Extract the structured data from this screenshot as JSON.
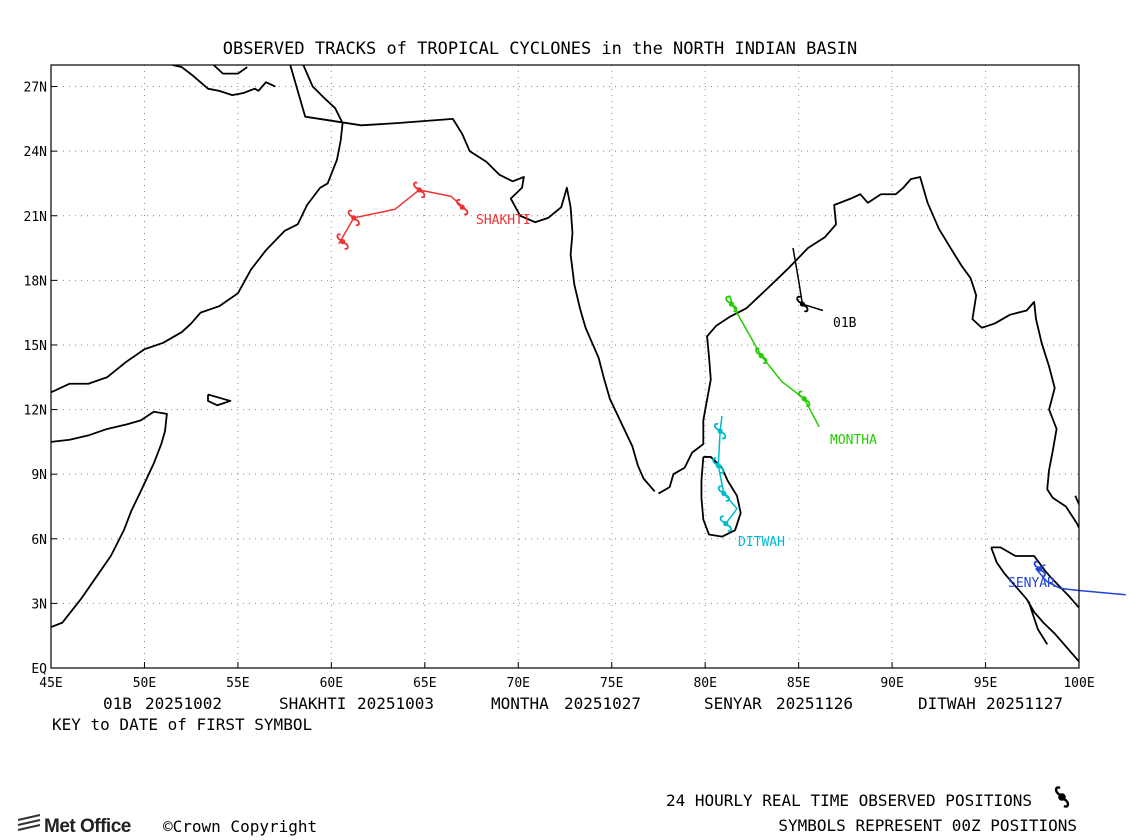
{
  "title": "OBSERVED TRACKS of TROPICAL CYCLONES in the NORTH INDIAN BASIN",
  "map": {
    "lon_range": [
      45,
      100
    ],
    "lat_range": [
      0,
      28
    ],
    "x_ticks": [
      "45E",
      "50E",
      "55E",
      "60E",
      "65E",
      "70E",
      "75E",
      "80E",
      "85E",
      "90E",
      "95E",
      "100E"
    ],
    "y_ticks": [
      "EQ",
      "3N",
      "6N",
      "9N",
      "12N",
      "15N",
      "18N",
      "21N",
      "24N",
      "27N"
    ],
    "gridlines": true
  },
  "tracks": [
    {
      "name": "SHAKHTI",
      "first_date": "20251003",
      "color": "#ee3333",
      "path": [
        [
          60.4,
          19.7
        ],
        [
          61.2,
          20.9
        ],
        [
          63.4,
          21.3
        ],
        [
          64.7,
          22.2
        ],
        [
          66.4,
          21.9
        ],
        [
          67.3,
          21.2
        ]
      ],
      "symbols": [
        [
          60.6,
          19.8
        ],
        [
          61.2,
          20.9
        ],
        [
          64.7,
          22.2
        ],
        [
          67.0,
          21.4
        ]
      ]
    },
    {
      "name": "01B",
      "first_date": "20251002",
      "color": "#000000",
      "path": [
        [
          84.7,
          19.5
        ],
        [
          85.0,
          18.0
        ],
        [
          85.2,
          16.9
        ],
        [
          86.3,
          16.6
        ]
      ],
      "symbols": [
        [
          85.2,
          16.9
        ]
      ]
    },
    {
      "name": "MONTHA",
      "first_date": "20251027",
      "color": "#22cc00",
      "path": [
        [
          81.3,
          17.3
        ],
        [
          81.5,
          16.8
        ],
        [
          83.0,
          14.5
        ],
        [
          84.1,
          13.3
        ],
        [
          85.3,
          12.5
        ],
        [
          86.1,
          11.2
        ]
      ],
      "symbols": [
        [
          81.4,
          16.9
        ],
        [
          83.0,
          14.5
        ],
        [
          85.3,
          12.5
        ]
      ]
    },
    {
      "name": "DITWAH",
      "first_date": "20251127",
      "color": "#00bbcc",
      "path": [
        [
          80.9,
          11.7
        ],
        [
          80.8,
          11.0
        ],
        [
          80.7,
          9.4
        ],
        [
          81.0,
          8.1
        ],
        [
          81.7,
          7.4
        ],
        [
          81.1,
          6.7
        ]
      ],
      "symbols": [
        [
          80.8,
          11.0
        ],
        [
          80.7,
          9.4
        ],
        [
          81.0,
          8.1
        ],
        [
          81.1,
          6.7
        ]
      ]
    },
    {
      "name": "SENYAR",
      "first_date": "20251126",
      "color": "#2244dd",
      "path": [
        [
          98.2,
          4.8
        ],
        [
          97.7,
          4.6
        ],
        [
          98.3,
          4.0
        ],
        [
          99.0,
          3.7
        ],
        [
          100.0,
          3.6
        ],
        [
          102.5,
          3.4
        ]
      ],
      "symbols": [
        [
          97.9,
          4.6
        ]
      ]
    }
  ],
  "key_entries": [
    {
      "name": "01B",
      "date": "20251002"
    },
    {
      "name": "SHAKHTI",
      "date": "20251003"
    },
    {
      "name": "MONTHA",
      "date": "20251027"
    },
    {
      "name": "SENYAR",
      "date": "20251126"
    },
    {
      "name": "DITWAH",
      "date": "20251127"
    }
  ],
  "key_caption": "KEY to DATE of FIRST SYMBOL",
  "footer": {
    "positions_note": "24 HOURLY REAL TIME OBSERVED POSITIONS",
    "symbols_note": "SYMBOLS REPRESENT 00Z POSITIONS",
    "logo_text": "Met Office",
    "copyright": "©Crown Copyright"
  },
  "coastlines": [
    [
      [
        45,
        12.8
      ],
      [
        46,
        13.2
      ],
      [
        47,
        13.2
      ],
      [
        48,
        13.5
      ],
      [
        49,
        14.2
      ],
      [
        50,
        14.8
      ],
      [
        51,
        15.1
      ],
      [
        52,
        15.6
      ],
      [
        52.5,
        16.0
      ],
      [
        53,
        16.5
      ],
      [
        54,
        16.8
      ],
      [
        55,
        17.4
      ],
      [
        55.7,
        18.5
      ],
      [
        56.5,
        19.4
      ],
      [
        57.5,
        20.3
      ],
      [
        58.2,
        20.6
      ],
      [
        58.7,
        21.5
      ],
      [
        59.4,
        22.3
      ],
      [
        59.8,
        22.5
      ],
      [
        60.3,
        23.6
      ],
      [
        60.5,
        24.5
      ],
      [
        60.6,
        25.3
      ],
      [
        60.2,
        26.0
      ],
      [
        59.7,
        26.4
      ],
      [
        59.0,
        27.0
      ],
      [
        58.5,
        28.0
      ]
    ],
    [
      [
        51.5,
        28.0
      ],
      [
        52.0,
        27.9
      ],
      [
        52.6,
        27.5
      ],
      [
        53.4,
        26.9
      ],
      [
        54.0,
        26.8
      ],
      [
        54.7,
        26.6
      ],
      [
        55.3,
        26.7
      ],
      [
        55.9,
        26.9
      ],
      [
        56.1,
        26.8
      ],
      [
        56.5,
        27.2
      ],
      [
        57.0,
        27.0
      ]
    ],
    [
      [
        53.7,
        28.0
      ],
      [
        54.2,
        27.6
      ],
      [
        55.0,
        27.6
      ],
      [
        55.5,
        27.9
      ]
    ],
    [
      [
        57.8,
        28.0
      ],
      [
        58.6,
        25.6
      ],
      [
        61.6,
        25.2
      ],
      [
        63.5,
        25.3
      ],
      [
        65.0,
        25.4
      ],
      [
        66.5,
        25.5
      ],
      [
        67.0,
        24.8
      ],
      [
        67.4,
        24.0
      ],
      [
        68.3,
        23.5
      ],
      [
        69.0,
        22.9
      ],
      [
        69.7,
        22.6
      ],
      [
        70.3,
        22.8
      ],
      [
        70.2,
        22.3
      ],
      [
        69.6,
        21.8
      ],
      [
        70.1,
        21.0
      ],
      [
        70.9,
        20.7
      ],
      [
        71.6,
        20.9
      ],
      [
        72.3,
        21.4
      ],
      [
        72.6,
        22.3
      ],
      [
        72.8,
        21.4
      ],
      [
        72.9,
        20.2
      ],
      [
        72.8,
        19.2
      ],
      [
        73.0,
        17.8
      ],
      [
        73.3,
        16.7
      ],
      [
        73.6,
        15.8
      ],
      [
        74.3,
        14.4
      ],
      [
        74.6,
        13.4
      ],
      [
        74.9,
        12.5
      ],
      [
        75.5,
        11.4
      ],
      [
        76.1,
        10.3
      ],
      [
        76.4,
        9.4
      ],
      [
        76.7,
        8.8
      ],
      [
        77.3,
        8.2
      ]
    ],
    [
      [
        77.5,
        8.1
      ],
      [
        78.1,
        8.4
      ],
      [
        78.3,
        9.0
      ],
      [
        78.9,
        9.3
      ],
      [
        79.3,
        10.0
      ],
      [
        79.9,
        10.4
      ],
      [
        79.9,
        11.5
      ],
      [
        80.3,
        13.4
      ],
      [
        80.2,
        14.5
      ],
      [
        80.1,
        15.4
      ],
      [
        80.6,
        15.9
      ],
      [
        81.3,
        16.3
      ],
      [
        82.2,
        16.7
      ],
      [
        83.3,
        17.6
      ],
      [
        84.5,
        18.6
      ],
      [
        85.5,
        19.5
      ],
      [
        86.4,
        20.0
      ],
      [
        87.0,
        20.6
      ],
      [
        86.9,
        21.5
      ],
      [
        87.8,
        21.8
      ],
      [
        88.3,
        22.0
      ],
      [
        88.7,
        21.6
      ],
      [
        89.4,
        22.0
      ],
      [
        90.2,
        22.0
      ],
      [
        90.6,
        22.3
      ],
      [
        91.0,
        22.7
      ],
      [
        91.5,
        22.8
      ],
      [
        91.9,
        21.6
      ],
      [
        92.3,
        20.8
      ],
      [
        92.5,
        20.4
      ],
      [
        93.2,
        19.4
      ],
      [
        93.7,
        18.7
      ],
      [
        94.2,
        18.1
      ],
      [
        94.5,
        17.3
      ],
      [
        94.3,
        16.2
      ],
      [
        94.8,
        15.8
      ],
      [
        95.5,
        16.0
      ],
      [
        96.3,
        16.4
      ],
      [
        97.2,
        16.6
      ],
      [
        97.6,
        17.0
      ],
      [
        97.7,
        16.2
      ],
      [
        98.0,
        15.1
      ],
      [
        98.4,
        14.0
      ],
      [
        98.7,
        13.0
      ],
      [
        98.4,
        12.0
      ],
      [
        98.8,
        11.1
      ],
      [
        98.6,
        10.1
      ],
      [
        98.4,
        9.2
      ],
      [
        98.3,
        8.3
      ],
      [
        98.6,
        7.9
      ],
      [
        99.3,
        7.5
      ],
      [
        99.9,
        6.7
      ],
      [
        100.0,
        6.5
      ]
    ],
    [
      [
        79.9,
        9.8
      ],
      [
        79.8,
        8.7
      ],
      [
        79.8,
        7.9
      ],
      [
        79.9,
        6.9
      ],
      [
        80.2,
        6.2
      ],
      [
        80.9,
        6.1
      ],
      [
        81.6,
        6.4
      ],
      [
        81.9,
        7.2
      ],
      [
        81.7,
        8.0
      ],
      [
        81.2,
        8.7
      ],
      [
        80.9,
        9.3
      ],
      [
        80.3,
        9.8
      ],
      [
        79.9,
        9.8
      ]
    ],
    [
      [
        95.3,
        5.6
      ],
      [
        95.8,
        5.6
      ],
      [
        96.6,
        5.2
      ],
      [
        97.6,
        5.2
      ],
      [
        98.2,
        4.5
      ],
      [
        98.5,
        4.2
      ],
      [
        99.5,
        3.3
      ],
      [
        100.0,
        2.8
      ]
    ],
    [
      [
        95.3,
        5.6
      ],
      [
        95.6,
        4.9
      ],
      [
        96.0,
        4.4
      ],
      [
        96.6,
        3.8
      ],
      [
        97.2,
        3.2
      ],
      [
        97.6,
        2.6
      ],
      [
        98.1,
        2.1
      ],
      [
        98.7,
        1.6
      ],
      [
        99.2,
        1.1
      ],
      [
        99.7,
        0.6
      ],
      [
        100.0,
        0.3
      ]
    ],
    [
      [
        45,
        1.9
      ],
      [
        45.6,
        2.1
      ],
      [
        46.6,
        3.2
      ],
      [
        47.4,
        4.2
      ],
      [
        48.2,
        5.2
      ],
      [
        48.9,
        6.4
      ],
      [
        49.3,
        7.3
      ],
      [
        49.8,
        8.2
      ],
      [
        50.5,
        9.5
      ],
      [
        50.9,
        10.4
      ],
      [
        51.1,
        11.0
      ],
      [
        51.2,
        11.8
      ],
      [
        50.5,
        11.9
      ],
      [
        49.8,
        11.5
      ],
      [
        49.0,
        11.3
      ],
      [
        48.0,
        11.1
      ],
      [
        47.0,
        10.8
      ],
      [
        46.0,
        10.6
      ],
      [
        45,
        10.5
      ]
    ],
    [
      [
        53.4,
        12.7
      ],
      [
        54.2,
        12.5
      ],
      [
        54.6,
        12.4
      ],
      [
        53.9,
        12.2
      ],
      [
        53.4,
        12.4
      ],
      [
        53.4,
        12.7
      ]
    ],
    [
      [
        99.8,
        8.0
      ],
      [
        100.0,
        7.6
      ]
    ],
    [
      [
        97.3,
        3.1
      ],
      [
        97.8,
        1.8
      ],
      [
        98.3,
        1.1
      ]
    ]
  ]
}
